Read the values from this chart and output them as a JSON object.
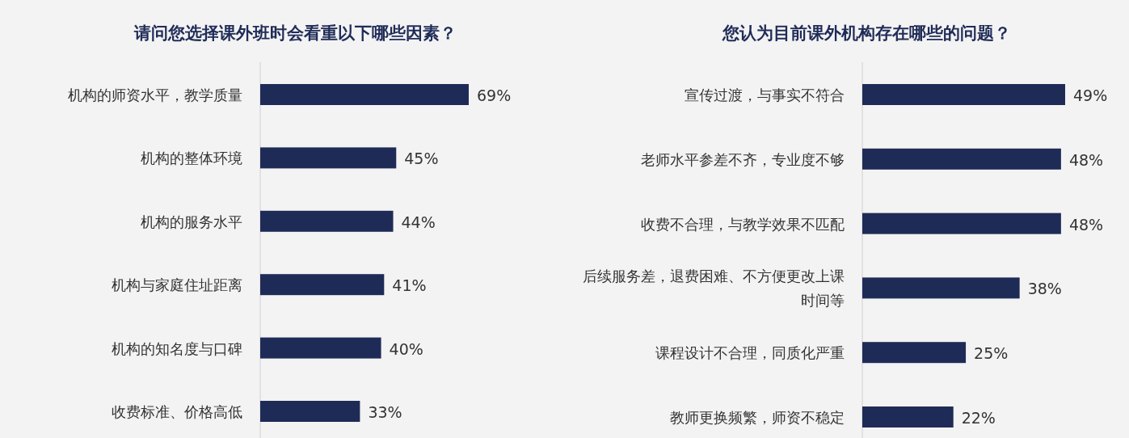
{
  "chart_data": [
    {
      "type": "bar",
      "orientation": "horizontal",
      "title": "请问您选择课外班时会看重以下哪些因素？",
      "categories": [
        "机构的师资水平，教学质量",
        "机构的整体环境",
        "机构的服务水平",
        "机构与家庭住址距离",
        "机构的知名度与口碑",
        "收费标准、价格高低"
      ],
      "values": [
        69,
        45,
        44,
        41,
        40,
        33
      ],
      "value_labels": [
        "69%",
        "45%",
        "44%",
        "41%",
        "40%",
        "33%"
      ],
      "color": "#1f2b57"
    },
    {
      "type": "bar",
      "orientation": "horizontal",
      "title": "您认为目前课外机构存在哪些的问题？",
      "categories": [
        "宣传过渡，与事实不符合",
        "老师水平参差不齐，专业度不够",
        "收费不合理，与教学效果不匹配",
        "后续服务差，退费困难、不方便更改上课时间等",
        "课程设计不合理，同质化严重",
        "教师更换频繁，师资不稳定"
      ],
      "values": [
        49,
        48,
        48,
        38,
        25,
        22
      ],
      "value_labels": [
        "49%",
        "48%",
        "48%",
        "38%",
        "25%",
        "22%"
      ],
      "color": "#1f2b57"
    }
  ]
}
